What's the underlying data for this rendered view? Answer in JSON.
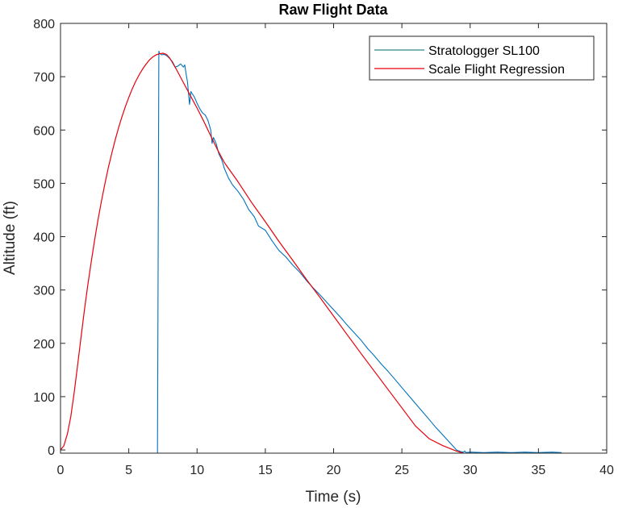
{
  "chart_data": {
    "type": "line",
    "title": "Raw Flight Data",
    "xlabel": "Time (s)",
    "ylabel": "Altitude (ft)",
    "xlim": [
      0,
      40
    ],
    "ylim": [
      -6,
      800
    ],
    "xticks": [
      0,
      5,
      10,
      15,
      20,
      25,
      30,
      35,
      40
    ],
    "yticks": [
      0,
      100,
      200,
      300,
      400,
      500,
      600,
      700,
      800
    ],
    "grid": false,
    "legend_position": "top-right",
    "legend": [
      "Stratologger SL100",
      "Scale Flight Regression"
    ],
    "series": [
      {
        "name": "Stratologger SL100",
        "color": "#0072BD",
        "legend_color": "#2a8a8a",
        "x": [
          7.1,
          7.2,
          7.25,
          7.4,
          7.6,
          7.8,
          8.0,
          8.2,
          8.4,
          8.6,
          8.8,
          9.0,
          9.1,
          9.2,
          9.3,
          9.45,
          9.5,
          9.55,
          9.6,
          9.8,
          10.0,
          10.2,
          10.4,
          10.6,
          10.8,
          11.0,
          11.1,
          11.2,
          11.4,
          11.6,
          11.8,
          12.0,
          12.3,
          12.6,
          13.0,
          13.4,
          13.8,
          14.0,
          14.2,
          14.5,
          15.0,
          15.5,
          16.0,
          16.5,
          17.0,
          17.5,
          18.0,
          18.5,
          19.0,
          19.5,
          20.0,
          20.5,
          21.0,
          21.5,
          22.0,
          22.5,
          23.0,
          23.5,
          24.0,
          24.5,
          25.0,
          25.5,
          26.0,
          26.5,
          27.0,
          27.5,
          28.0,
          28.5,
          29.0,
          29.3,
          29.5,
          29.6,
          29.7,
          30.0,
          31.0,
          32.0,
          33.0,
          34.0,
          35.0,
          36.0,
          36.7
        ],
        "y": [
          -6,
          748,
          744,
          741,
          742,
          739,
          734,
          728,
          718,
          720,
          724,
          718,
          722,
          705,
          690,
          648,
          660,
          672,
          670,
          662,
          650,
          640,
          632,
          628,
          618,
          600,
          575,
          586,
          575,
          555,
          545,
          528,
          510,
          497,
          485,
          470,
          450,
          444,
          437,
          420,
          412,
          392,
          374,
          362,
          347,
          334,
          318,
          304,
          291,
          277,
          263,
          249,
          234,
          220,
          206,
          190,
          176,
          161,
          147,
          132,
          117,
          102,
          87,
          72,
          57,
          42,
          28,
          14,
          0,
          -3,
          -4,
          -2,
          -5,
          -4,
          -5,
          -4,
          -5,
          -4,
          -5,
          -4,
          -5
        ]
      },
      {
        "name": "Scale Flight Regression",
        "color": "#e8000b",
        "x": [
          0,
          0.25,
          0.5,
          0.75,
          1.0,
          1.25,
          1.5,
          1.75,
          2.0,
          2.25,
          2.5,
          2.75,
          3.0,
          3.25,
          3.5,
          3.75,
          4.0,
          4.25,
          4.5,
          4.75,
          5.0,
          5.25,
          5.5,
          5.75,
          6.0,
          6.25,
          6.5,
          6.75,
          7.0,
          7.25,
          7.5,
          7.75,
          8.0,
          8.5,
          9.0,
          9.5,
          10.0,
          10.5,
          11.0,
          11.5,
          12.0,
          13.0,
          14.0,
          15.0,
          16.0,
          17.0,
          18.0,
          19.0,
          20.0,
          21.0,
          22.0,
          23.0,
          24.0,
          25.0,
          26.0,
          27.0,
          28.0,
          29.0,
          29.5
        ],
        "y": [
          0,
          8,
          30,
          62,
          107,
          159,
          211,
          262,
          309,
          353,
          394,
          432,
          467,
          499,
          529,
          556,
          581,
          604,
          625,
          644,
          661,
          677,
          691,
          703,
          714,
          723,
          731,
          737,
          741,
          743,
          744,
          742,
          735,
          713,
          689,
          665,
          641,
          616,
          589,
          563,
          539,
          503,
          464,
          428,
          391,
          356,
          320,
          286,
          251,
          216,
          181,
          147,
          113,
          79,
          45,
          21,
          8,
          -2,
          -6
        ]
      }
    ]
  }
}
